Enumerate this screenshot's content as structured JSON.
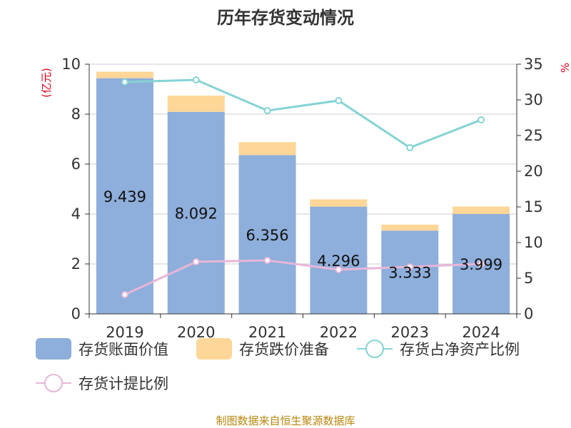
{
  "chart_data": {
    "type": "bar",
    "title": "历年存货变动情况",
    "categories": [
      "2019",
      "2020",
      "2021",
      "2022",
      "2023",
      "2024"
    ],
    "y_left_label": "(亿元)",
    "y_right_label": "%",
    "y_left_lim": [
      0,
      10
    ],
    "y_left_ticks": [
      "0",
      "2",
      "4",
      "6",
      "8",
      "10"
    ],
    "y_right_lim": [
      0,
      35
    ],
    "y_right_ticks": [
      "0",
      "5",
      "10",
      "15",
      "20",
      "25",
      "30",
      "35"
    ],
    "series": [
      {
        "name": "存货账面价值",
        "kind": "bar-stack",
        "axis": "left",
        "color": "#8eaedb",
        "values": [
          9.439,
          8.092,
          6.356,
          4.296,
          3.333,
          3.999
        ],
        "labels": [
          "9.439",
          "8.092",
          "6.356",
          "4.296",
          "3.333",
          "3.999"
        ]
      },
      {
        "name": "存货跌价准备",
        "kind": "bar-stack",
        "axis": "left",
        "color": "#fdd698",
        "values": [
          0.26,
          0.65,
          0.52,
          0.29,
          0.24,
          0.3
        ]
      },
      {
        "name": "存货占净资产比例",
        "kind": "line",
        "axis": "right",
        "color": "#84d3d5",
        "values": [
          32.5,
          32.8,
          28.5,
          29.9,
          23.3,
          27.2
        ]
      },
      {
        "name": "存货计提比例",
        "kind": "line",
        "axis": "right",
        "color": "#e7b6d8",
        "values": [
          2.7,
          7.3,
          7.5,
          6.2,
          6.6,
          7.0
        ]
      }
    ],
    "grid": true,
    "legend_position": "bottom"
  },
  "source": "制图数据来自恒生聚源数据库"
}
